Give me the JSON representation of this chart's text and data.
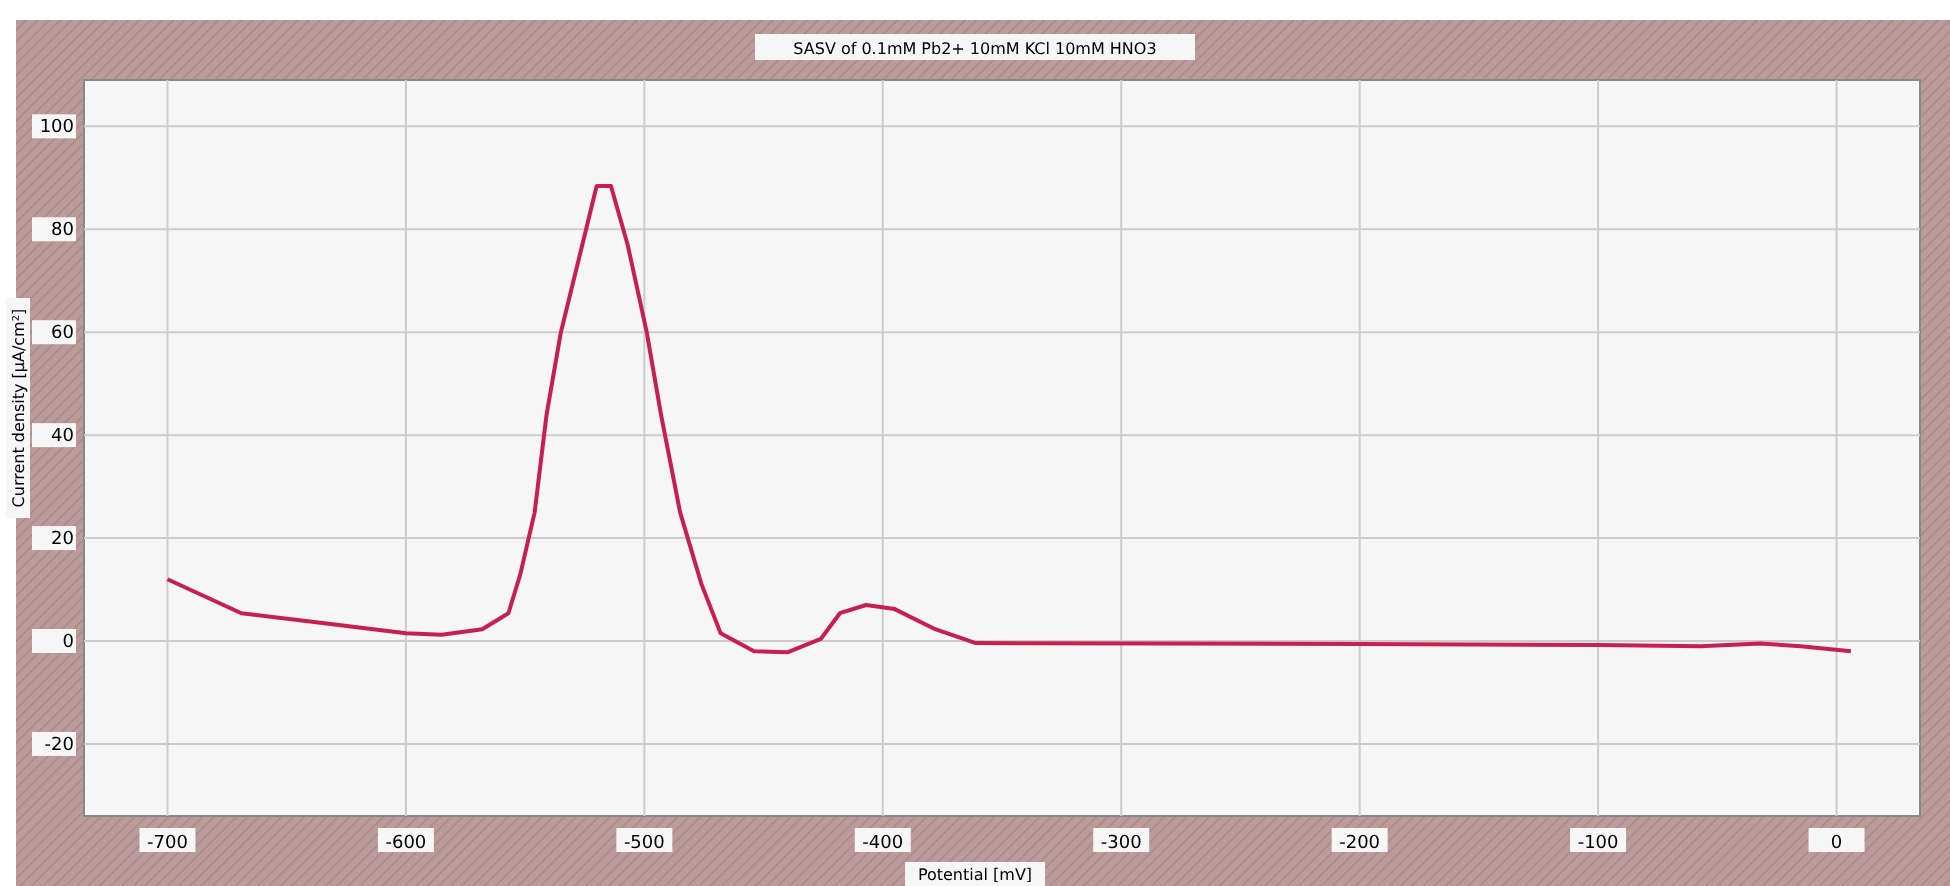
{
  "chart_data": {
    "type": "line",
    "title": "SASV of 0.1mM Pb2+ 10mM KCl 10mM HNO3",
    "xlabel": "Potential [mV]",
    "ylabel": "Current density [µA/cm²]",
    "xlim": [
      -735,
      35
    ],
    "ylim": [
      -34,
      109
    ],
    "xticks": [
      -700,
      -600,
      -500,
      -400,
      -300,
      -200,
      -100,
      0
    ],
    "yticks": [
      -20,
      0,
      20,
      40,
      60,
      80,
      100
    ],
    "grid": true,
    "series": [
      {
        "color": "#c8204e",
        "x": [
          -700,
          -669,
          -635,
          -600,
          -585,
          -568,
          -557,
          -552,
          -546,
          -541,
          -535,
          -526,
          -520,
          -514,
          -507,
          -499,
          -493,
          -485,
          -476,
          -468,
          -454,
          -440,
          -426,
          -418,
          -407,
          -395,
          -378,
          -361,
          -283,
          -200,
          -100,
          -57,
          -32,
          -15,
          6
        ],
        "values": [
          12,
          5.4,
          3.5,
          1.5,
          1.2,
          2.3,
          5.4,
          13,
          25,
          44,
          60,
          77,
          88.4,
          88.4,
          77,
          60,
          44,
          25,
          11,
          1.5,
          -2,
          -2.2,
          0.4,
          5.4,
          7,
          6.2,
          2.3,
          -0.4,
          -0.5,
          -0.6,
          -0.8,
          -1,
          -0.5,
          -1,
          -2
        ]
      }
    ]
  }
}
